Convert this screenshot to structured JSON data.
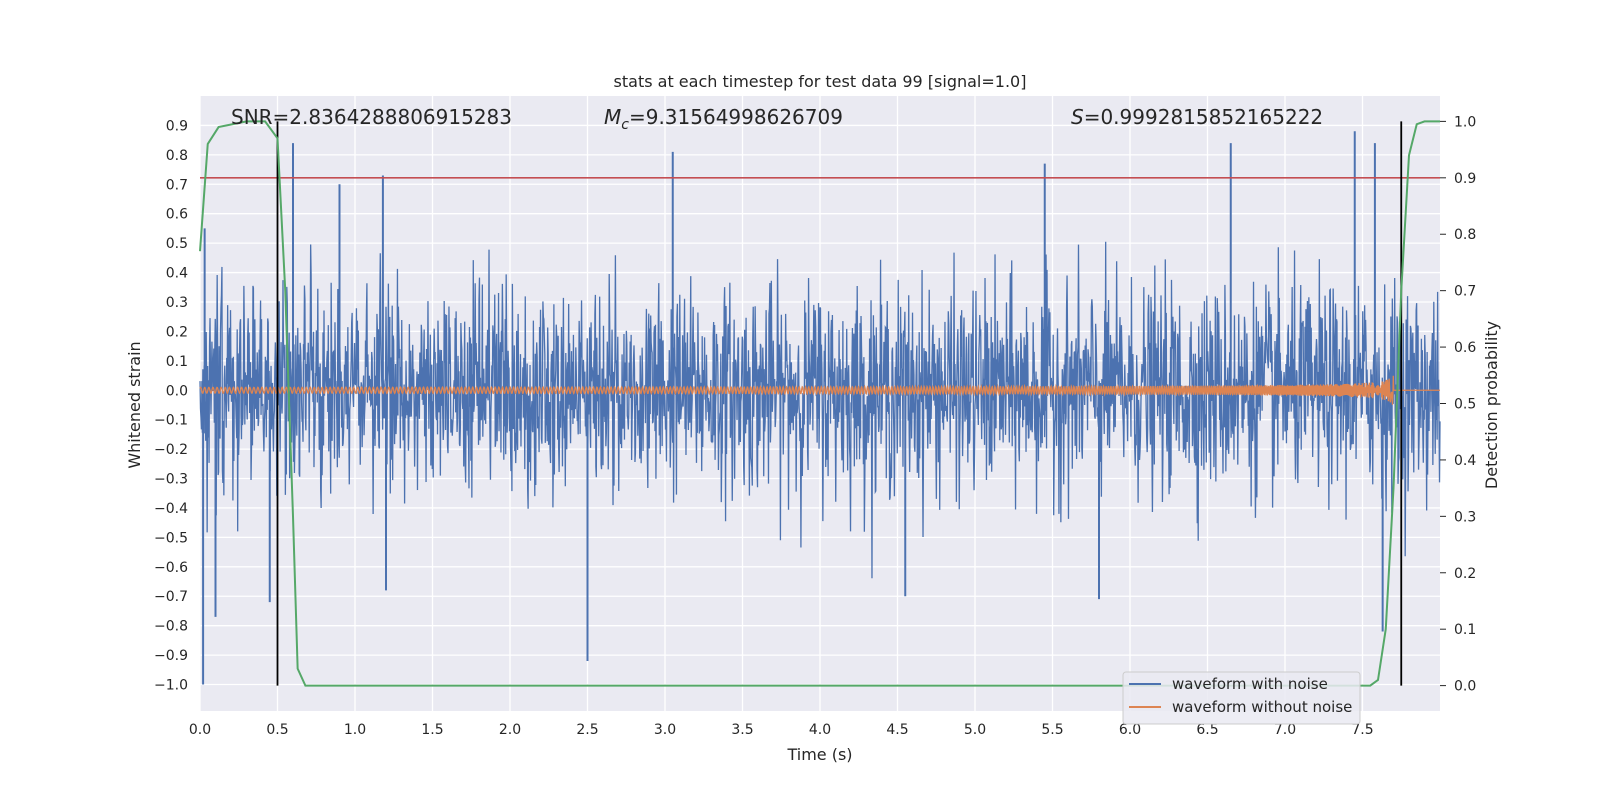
{
  "chart_data": {
    "type": "line",
    "title": "stats at each timestep for test data 99 [signal=1.0]",
    "xlabel": "Time (s)",
    "ylabel": "Whitened strain",
    "y2label": "Detection probability",
    "xlim": [
      0.0,
      8.0
    ],
    "ylim": [
      -1.09,
      1.0
    ],
    "y2lim": [
      -0.045,
      1.045
    ],
    "x_ticks": [
      "0.0",
      "0.5",
      "1.0",
      "1.5",
      "2.0",
      "2.5",
      "3.0",
      "3.5",
      "4.0",
      "4.5",
      "5.0",
      "5.5",
      "6.0",
      "6.5",
      "7.0",
      "7.5"
    ],
    "y_ticks": [
      "0.9",
      "0.8",
      "0.7",
      "0.6",
      "0.5",
      "0.4",
      "0.3",
      "0.2",
      "0.1",
      "0.0",
      "−0.1",
      "−0.2",
      "−0.3",
      "−0.4",
      "−0.5",
      "−0.6",
      "−0.7",
      "−0.8",
      "−0.9",
      "−1.0"
    ],
    "y2_ticks": [
      "1.0",
      "0.9",
      "0.8",
      "0.7",
      "0.6",
      "0.5",
      "0.4",
      "0.3",
      "0.2",
      "0.1",
      "0.0"
    ],
    "grid": true,
    "legend_position": "lower-right",
    "annotations": {
      "snr": "SNR=2.8364288806915283",
      "mc_symbol": "M",
      "mc_subscript": "c",
      "mc_value": "=9.31564998626709",
      "s_symbol": "S",
      "s_value": "=0.9992815852165222"
    },
    "threshold_line": {
      "axis": "right",
      "value": 0.9,
      "color": "#c44e52"
    },
    "vertical_lines": [
      0.5,
      7.75
    ],
    "series": [
      {
        "name": "waveform with noise",
        "axis": "left",
        "color": "#4c72b0",
        "description_range": [
          -1.0,
          0.88
        ],
        "spikes": [
          [
            0.02,
            -1.0
          ],
          [
            0.03,
            0.55
          ],
          [
            0.1,
            -0.77
          ],
          [
            0.45,
            -0.72
          ],
          [
            0.6,
            0.84
          ],
          [
            0.9,
            0.7
          ],
          [
            1.2,
            -0.68
          ],
          [
            1.18,
            0.73
          ],
          [
            2.5,
            -0.92
          ],
          [
            3.05,
            0.81
          ],
          [
            4.55,
            -0.7
          ],
          [
            5.45,
            0.77
          ],
          [
            5.8,
            -0.71
          ],
          [
            6.65,
            0.84
          ],
          [
            7.45,
            0.88
          ],
          [
            7.58,
            0.84
          ],
          [
            7.63,
            -0.82
          ]
        ]
      },
      {
        "name": "waveform without noise",
        "axis": "left",
        "color": "#dd8452",
        "chirp_start_amp": 0.01,
        "chirp_peak_amp": 0.1,
        "merger_time": 7.7
      },
      {
        "name": "detection probability",
        "axis": "right",
        "color": "#55a868",
        "x": [
          0.0,
          0.05,
          0.12,
          0.3,
          0.42,
          0.5,
          0.55,
          0.6,
          0.63,
          0.68,
          0.75,
          3.0,
          3.1,
          7.55,
          7.6,
          7.65,
          7.7,
          7.75,
          7.8,
          7.85,
          7.9,
          8.0
        ],
        "values": [
          0.77,
          0.96,
          0.99,
          1.0,
          1.0,
          0.97,
          0.7,
          0.3,
          0.03,
          0.0,
          0.0,
          0.0,
          0.0,
          0.0,
          0.01,
          0.1,
          0.35,
          0.7,
          0.94,
          0.995,
          1.0,
          1.0
        ]
      }
    ]
  }
}
